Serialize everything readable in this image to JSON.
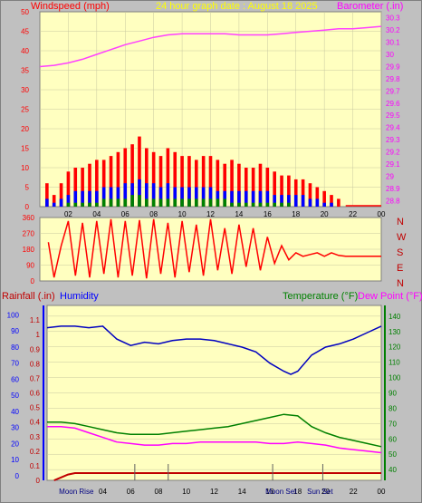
{
  "header": {
    "left_label": "Windspeed (mph)",
    "center_label": "24 hour graph date : August 18 2025",
    "right_label": "Barometer (.in)"
  },
  "lower_header": {
    "rainfall_label": "Rainfall (.in)",
    "humidity_label": "Humidity",
    "temperature_label": "Temperature (°F)",
    "dewpoint_label": "Dew Point (°F)"
  },
  "compass": [
    "N",
    "W",
    "S",
    "E",
    "N"
  ],
  "colors": {
    "panel": "#ffffc0",
    "wind": "#ff0000",
    "gust": "#ff0000",
    "wind_avg": "#0000ff",
    "wind_min": "#008000",
    "barometer": "#ff40ff",
    "direction": "#ff0000",
    "humidity": "#0000c0",
    "temperature": "#008000",
    "dewpoint": "#ff00ff",
    "rain": "#c00000",
    "left_axis_top": "#ff0000",
    "right_axis_top": "#ff00ff",
    "humidity_axis": "#0000ff",
    "temp_axis": "#008000"
  },
  "chart_data": [
    {
      "type": "bar",
      "name_hint": "wind",
      "x_ticks": [
        "02",
        "04",
        "06",
        "08",
        "10",
        "12",
        "14",
        "16",
        "18",
        "20",
        "22",
        "00"
      ],
      "left_ticks": [
        0,
        5,
        10,
        15,
        20,
        25,
        30,
        35,
        40,
        45,
        50
      ],
      "ylim": [
        0,
        50
      ],
      "right_ticks": [
        28.8,
        28.9,
        29,
        29.1,
        29.2,
        29.3,
        29.4,
        29.5,
        29.6,
        29.7,
        29.8,
        29.9,
        30,
        30.1,
        30.2,
        30.3
      ],
      "right_lim": [
        28.75,
        30.35
      ],
      "hours": [
        0.5,
        1,
        1.5,
        2,
        2.5,
        3,
        3.5,
        4,
        4.5,
        5,
        5.5,
        6,
        6.5,
        7,
        7.5,
        8,
        8.5,
        9,
        9.5,
        10,
        10.5,
        11,
        11.5,
        12,
        12.5,
        13,
        13.5,
        14,
        14.5,
        15,
        15.5,
        16,
        16.5,
        17,
        17.5,
        18,
        18.5,
        19,
        19.5,
        20,
        20.5,
        21,
        21.5
      ],
      "gust": [
        6,
        3,
        6,
        9,
        10,
        10,
        11,
        12,
        12,
        13,
        14,
        15,
        16,
        18,
        15,
        14,
        13,
        15,
        14,
        13,
        13,
        12,
        13,
        13,
        12,
        11,
        12,
        11,
        10,
        10,
        11,
        10,
        9,
        8,
        8,
        7,
        7,
        6,
        5,
        4,
        3,
        2,
        0
      ],
      "avg": [
        2,
        1,
        2,
        3,
        4,
        4,
        4,
        4,
        5,
        5,
        5,
        6,
        6,
        7,
        6,
        6,
        5,
        6,
        5,
        5,
        5,
        5,
        5,
        5,
        4,
        4,
        4,
        4,
        4,
        4,
        4,
        4,
        3,
        3,
        3,
        3,
        3,
        2,
        2,
        1,
        1,
        0,
        0
      ],
      "min": [
        0,
        0,
        0,
        1,
        1,
        1,
        1,
        1,
        2,
        2,
        2,
        2,
        3,
        3,
        2,
        2,
        2,
        2,
        2,
        2,
        2,
        2,
        2,
        2,
        2,
        2,
        1,
        1,
        1,
        1,
        1,
        1,
        1,
        1,
        1,
        0,
        0,
        0,
        0,
        0,
        0,
        0,
        0
      ],
      "barometer": {
        "x": [
          0,
          1,
          2,
          3,
          4,
          5,
          6,
          7,
          8,
          9,
          10,
          11,
          12,
          13,
          14,
          15,
          16,
          17,
          18,
          19,
          20,
          21,
          22,
          23,
          24
        ],
        "y": [
          29.9,
          29.91,
          29.93,
          29.96,
          30.0,
          30.04,
          30.08,
          30.11,
          30.14,
          30.16,
          30.17,
          30.17,
          30.17,
          30.17,
          30.16,
          30.16,
          30.16,
          30.17,
          30.18,
          30.19,
          30.2,
          30.21,
          30.21,
          30.22,
          30.23
        ]
      }
    },
    {
      "type": "line",
      "name_hint": "wind direction",
      "left_ticks": [
        0,
        90,
        180,
        270,
        360
      ],
      "ylim": [
        0,
        360
      ],
      "x": [
        0.6,
        1.0,
        1.5,
        2,
        2.5,
        3,
        3.5,
        4,
        4.5,
        5,
        5.5,
        6,
        6.5,
        7,
        7.5,
        8,
        8.5,
        9,
        9.5,
        10,
        10.5,
        11,
        11.5,
        12,
        12.5,
        13,
        13.5,
        14,
        14.5,
        15,
        15.5,
        16,
        16.5,
        17,
        17.5,
        18,
        18.5,
        19,
        19.5,
        20,
        20.5,
        21,
        21.5,
        22,
        23,
        24
      ],
      "y": [
        220,
        20,
        200,
        340,
        30,
        330,
        20,
        340,
        40,
        350,
        20,
        340,
        30,
        345,
        15,
        350,
        40,
        330,
        20,
        340,
        50,
        320,
        30,
        350,
        60,
        300,
        40,
        320,
        80,
        300,
        60,
        250,
        100,
        200,
        120,
        160,
        140,
        150,
        160,
        140,
        160,
        145,
        140,
        140,
        140,
        140
      ]
    },
    {
      "type": "line",
      "name_hint": "humidity temperature dewpoint rain",
      "x_ticks": [
        "04",
        "06",
        "08",
        "10",
        "12",
        "14",
        "16",
        "18",
        "20",
        "22",
        "00"
      ],
      "astro_labels": [
        "Moon Rise",
        "Moon Set",
        "Sun Set"
      ],
      "humidity_ticks": [
        0,
        10,
        20,
        30,
        40,
        50,
        60,
        70,
        80,
        90,
        100
      ],
      "rain_ticks": [
        0,
        0.1,
        0.2,
        0.3,
        0.4,
        0.5,
        0.6,
        0.7,
        0.8,
        0.9,
        1,
        1.1
      ],
      "temp_ticks": [
        40,
        50,
        60,
        70,
        80,
        90,
        100,
        110,
        120,
        130,
        140
      ],
      "temp_lim": [
        33,
        147
      ],
      "humidity": {
        "x": [
          0,
          1,
          2,
          3,
          4,
          5,
          6,
          7,
          8,
          9,
          10,
          11,
          12,
          13,
          14,
          15,
          16,
          17,
          17.5,
          18,
          19,
          20,
          21,
          22,
          23,
          24
        ],
        "y": [
          92,
          93,
          93,
          92,
          93,
          85,
          81,
          83,
          82,
          84,
          85,
          85,
          84,
          82,
          80,
          77,
          70,
          65,
          63,
          65,
          75,
          80,
          82,
          85,
          89,
          93
        ]
      },
      "temperature": {
        "x": [
          0,
          1,
          2,
          3,
          4,
          5,
          6,
          7,
          8,
          9,
          10,
          11,
          12,
          13,
          14,
          15,
          16,
          17,
          18,
          19,
          20,
          21,
          22,
          23,
          24
        ],
        "y": [
          71,
          71,
          70,
          68,
          66,
          64,
          63,
          63,
          63,
          64,
          65,
          66,
          67,
          68,
          70,
          72,
          74,
          76,
          75,
          68,
          64,
          61,
          59,
          57,
          55
        ],
        "note": "values in °F"
      },
      "dewpoint": {
        "x": [
          0,
          1,
          2,
          3,
          4,
          5,
          6,
          7,
          8,
          9,
          10,
          11,
          12,
          13,
          14,
          15,
          16,
          17,
          18,
          19,
          20,
          21,
          22,
          23,
          24
        ],
        "y": [
          68,
          68,
          67,
          64,
          61,
          58,
          57,
          56,
          56,
          57,
          57,
          58,
          58,
          58,
          58,
          58,
          57,
          57,
          58,
          57,
          56,
          54,
          53,
          52,
          51
        ]
      },
      "rain": {
        "x": [
          0.5,
          1,
          1.5,
          2,
          3,
          24
        ],
        "y": [
          0,
          0.02,
          0.04,
          0.05,
          0.05,
          0.05
        ]
      }
    }
  ]
}
